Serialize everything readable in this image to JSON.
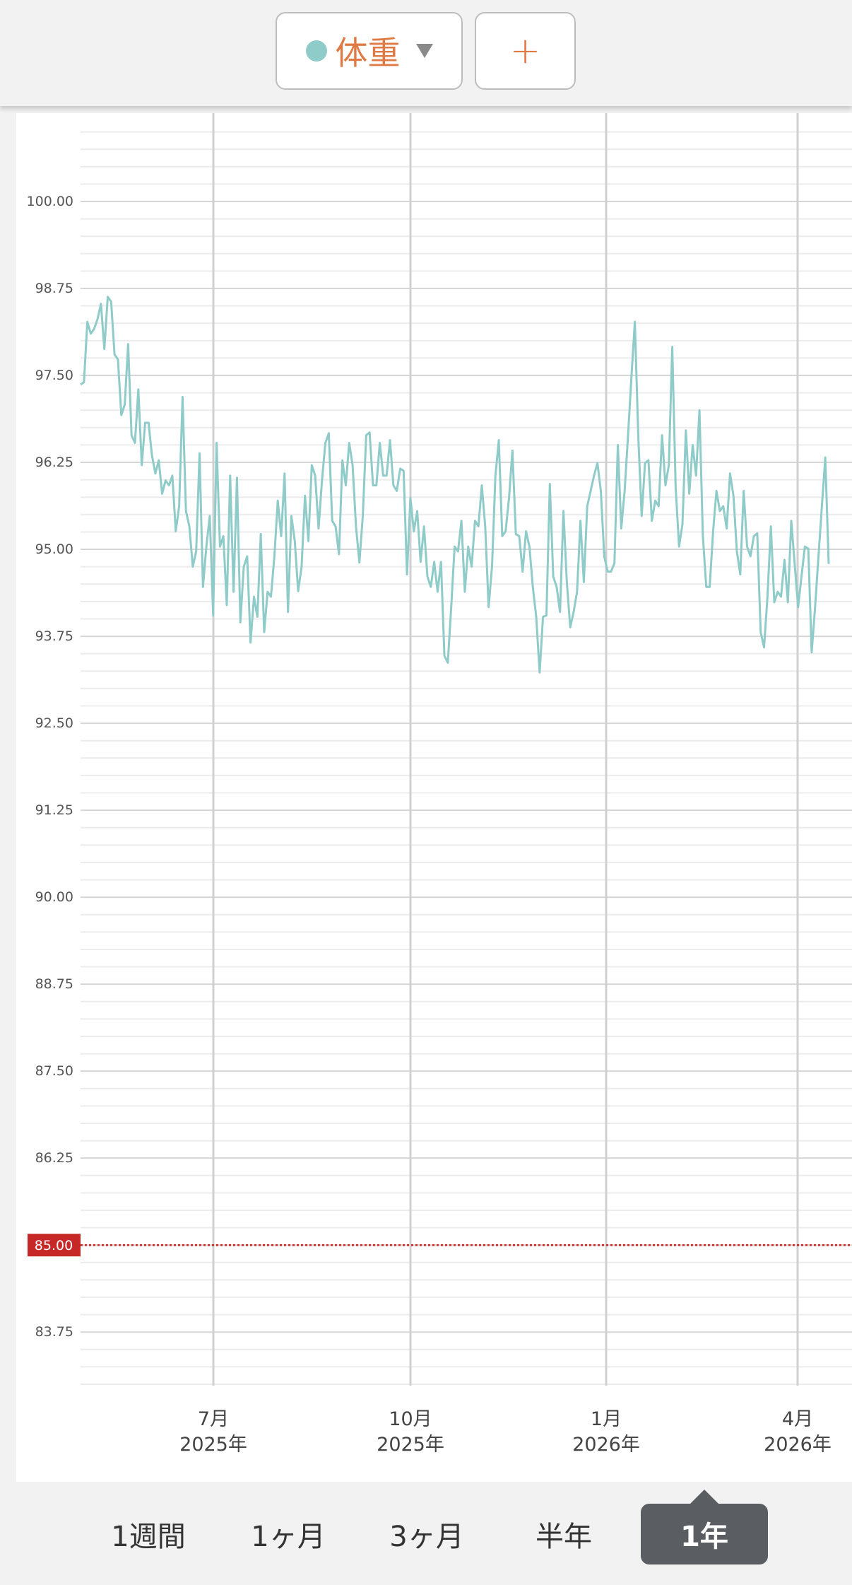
{
  "header": {
    "add_button": "+"
  },
  "chart_data": {
    "type": "line",
    "series": [
      {
        "name": "体重",
        "color": "#8fcbc9",
        "values": [
          97.37,
          97.4,
          98.27,
          98.1,
          98.17,
          98.31,
          98.53,
          97.88,
          98.63,
          98.56,
          97.8,
          97.73,
          96.93,
          97.08,
          97.95,
          96.64,
          96.53,
          97.3,
          96.21,
          96.82,
          96.82,
          96.35,
          96.09,
          96.28,
          95.8,
          95.99,
          95.92,
          96.06,
          95.26,
          95.62,
          97.19,
          95.55,
          95.33,
          94.75,
          94.97,
          96.38,
          94.46,
          95.04,
          95.48,
          94.05,
          96.53,
          95.04,
          95.19,
          94.2,
          96.06,
          94.39,
          96.03,
          93.95,
          94.75,
          94.9,
          93.66,
          94.32,
          94.03,
          95.22,
          93.81,
          94.39,
          94.32,
          94.9,
          95.7,
          95.19,
          96.09,
          94.1,
          95.48,
          95.12,
          94.4,
          94.75,
          95.77,
          95.12,
          96.21,
          96.06,
          95.3,
          95.99,
          96.53,
          96.67,
          95.41,
          95.33,
          94.93,
          96.28,
          95.92,
          96.53,
          96.21,
          95.33,
          94.81,
          95.48,
          96.64,
          96.68,
          95.92,
          95.92,
          96.53,
          96.06,
          96.06,
          96.57,
          95.92,
          95.84,
          96.16,
          96.13,
          94.64,
          95.74,
          95.26,
          95.55,
          94.82,
          95.33,
          94.61,
          94.46,
          94.82,
          94.39,
          94.82,
          93.47,
          93.37,
          94.17,
          95.04,
          94.97,
          95.41,
          94.39,
          95.04,
          94.75,
          95.41,
          95.33,
          95.92,
          95.33,
          94.17,
          94.75,
          96.06,
          96.57,
          95.19,
          95.26,
          95.74,
          96.42,
          95.22,
          95.19,
          94.68,
          95.26,
          95.04,
          94.46,
          94.03,
          93.23,
          94.03,
          94.05,
          95.94,
          94.61,
          94.46,
          94.1,
          95.55,
          94.53,
          93.88,
          94.1,
          94.39,
          95.41,
          94.53,
          95.62,
          95.84,
          96.06,
          96.24,
          95.84,
          94.9,
          94.68,
          94.68,
          94.8,
          96.5,
          95.3,
          95.84,
          96.64,
          97.48,
          98.27,
          96.64,
          95.48,
          96.24,
          96.28,
          95.41,
          95.7,
          95.62,
          96.64,
          95.92,
          96.21,
          97.91,
          95.89,
          95.04,
          95.36,
          96.71,
          95.8,
          96.5,
          96.06,
          97.0,
          95.19,
          94.46,
          94.46,
          95.25,
          95.84,
          95.55,
          95.62,
          95.3,
          96.09,
          95.77,
          94.97,
          94.64,
          95.84,
          95.04,
          94.9,
          95.19,
          95.23,
          93.81,
          93.59,
          94.32,
          95.33,
          94.24,
          94.39,
          94.32,
          94.85,
          94.24,
          95.41,
          94.79,
          94.17,
          94.61,
          95.04,
          95.01,
          93.52,
          94.17,
          94.9,
          95.62,
          96.32,
          94.79
        ]
      }
    ],
    "ylim": [
      82.98,
      101.27
    ],
    "yticks": [
      {
        "value": 83.75,
        "label": "83.75"
      },
      {
        "value": 85,
        "label": "85.00"
      },
      {
        "value": 86.25,
        "label": "86.25"
      },
      {
        "value": 87.5,
        "label": "87.50"
      },
      {
        "value": 88.75,
        "label": "88.75"
      },
      {
        "value": 90,
        "label": "90.00"
      },
      {
        "value": 91.25,
        "label": "91.25"
      },
      {
        "value": 92.5,
        "label": "92.50"
      },
      {
        "value": 93.75,
        "label": "93.75"
      },
      {
        "value": 95,
        "label": "95.00"
      },
      {
        "value": 96.25,
        "label": "96.25"
      },
      {
        "value": 97.5,
        "label": "97.50"
      },
      {
        "value": 98.75,
        "label": "98.75"
      },
      {
        "value": 100,
        "label": "100.00"
      }
    ],
    "minor_divisions": 5,
    "grid": true,
    "xticks": [
      {
        "month": "7月",
        "year": "2025年"
      },
      {
        "month": "10月",
        "year": "2025年"
      },
      {
        "month": "1月",
        "year": "2026年"
      },
      {
        "month": "4月",
        "year": "2026年"
      }
    ],
    "target": {
      "value": 85,
      "label": "85.00",
      "color": "#c62828"
    }
  },
  "tabs": {
    "items": [
      "1週間",
      "1ヶ月",
      "3ヶ月",
      "半年",
      "1年"
    ],
    "selected": 4
  }
}
